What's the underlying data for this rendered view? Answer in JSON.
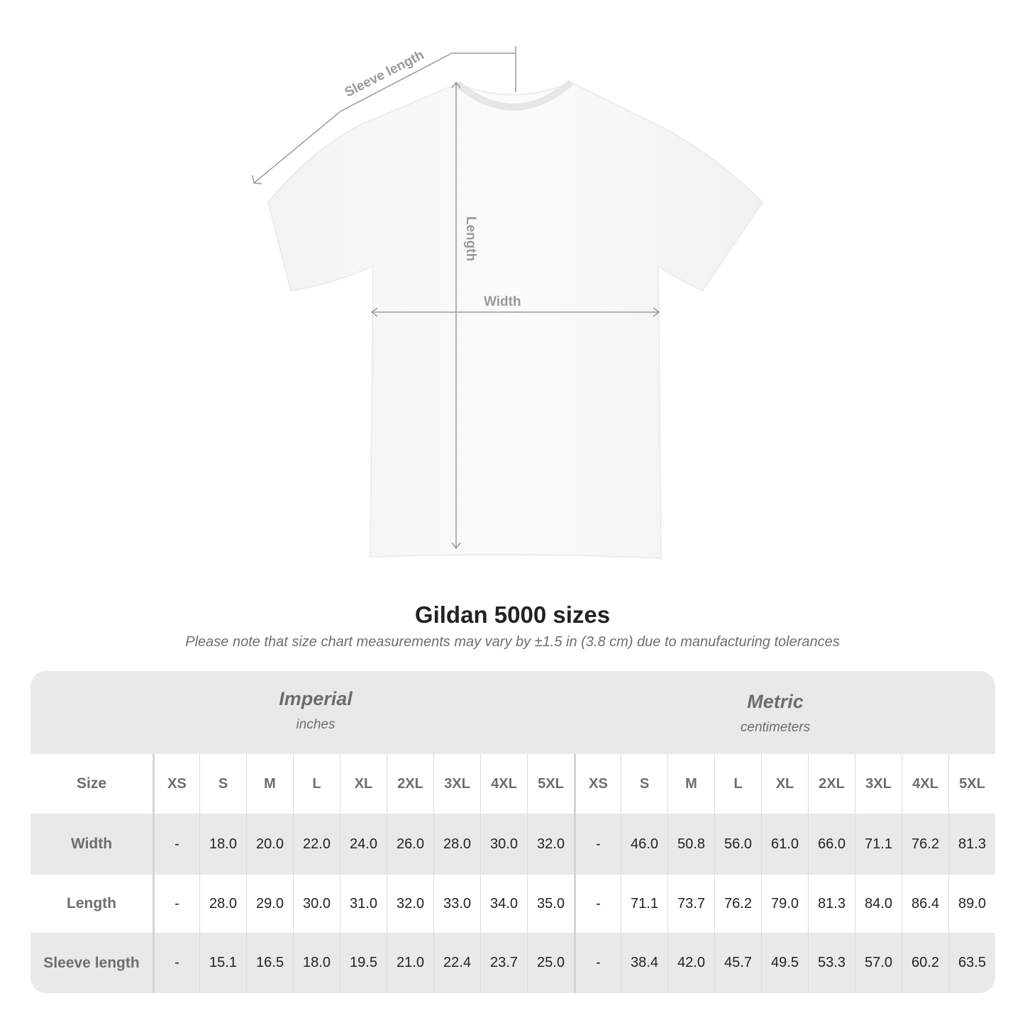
{
  "diagram": {
    "labels": {
      "sleeve": "Sleeve length",
      "length": "Length",
      "width": "Width"
    },
    "colors": {
      "line": "#9a9a9a",
      "label": "#9a9a9a"
    }
  },
  "title": "Gildan 5000 sizes",
  "note": "Please note that size chart measurements may vary by ±1.5 in (3.8 cm) due to manufacturing tolerances",
  "systems": [
    {
      "name": "Imperial",
      "unit": "inches"
    },
    {
      "name": "Metric",
      "unit": "centimeters"
    }
  ],
  "table": {
    "size_label": "Size",
    "sizes": [
      "XS",
      "S",
      "M",
      "L",
      "XL",
      "2XL",
      "3XL",
      "4XL",
      "5XL",
      "XS",
      "S",
      "M",
      "L",
      "XL",
      "2XL",
      "3XL",
      "4XL",
      "5XL"
    ],
    "rows": [
      {
        "label": "Width",
        "values": [
          "-",
          "18.0",
          "20.0",
          "22.0",
          "24.0",
          "26.0",
          "28.0",
          "30.0",
          "32.0",
          "-",
          "46.0",
          "50.8",
          "56.0",
          "61.0",
          "66.0",
          "71.1",
          "76.2",
          "81.3"
        ]
      },
      {
        "label": "Length",
        "values": [
          "-",
          "28.0",
          "29.0",
          "30.0",
          "31.0",
          "32.0",
          "33.0",
          "34.0",
          "35.0",
          "-",
          "71.1",
          "73.7",
          "76.2",
          "79.0",
          "81.3",
          "84.0",
          "86.4",
          "89.0"
        ]
      },
      {
        "label": "Sleeve length",
        "values": [
          "-",
          "15.1",
          "16.5",
          "18.0",
          "19.5",
          "21.0",
          "22.4",
          "23.7",
          "25.0",
          "-",
          "38.4",
          "42.0",
          "45.7",
          "49.5",
          "53.3",
          "57.0",
          "60.2",
          "63.5"
        ]
      }
    ]
  }
}
